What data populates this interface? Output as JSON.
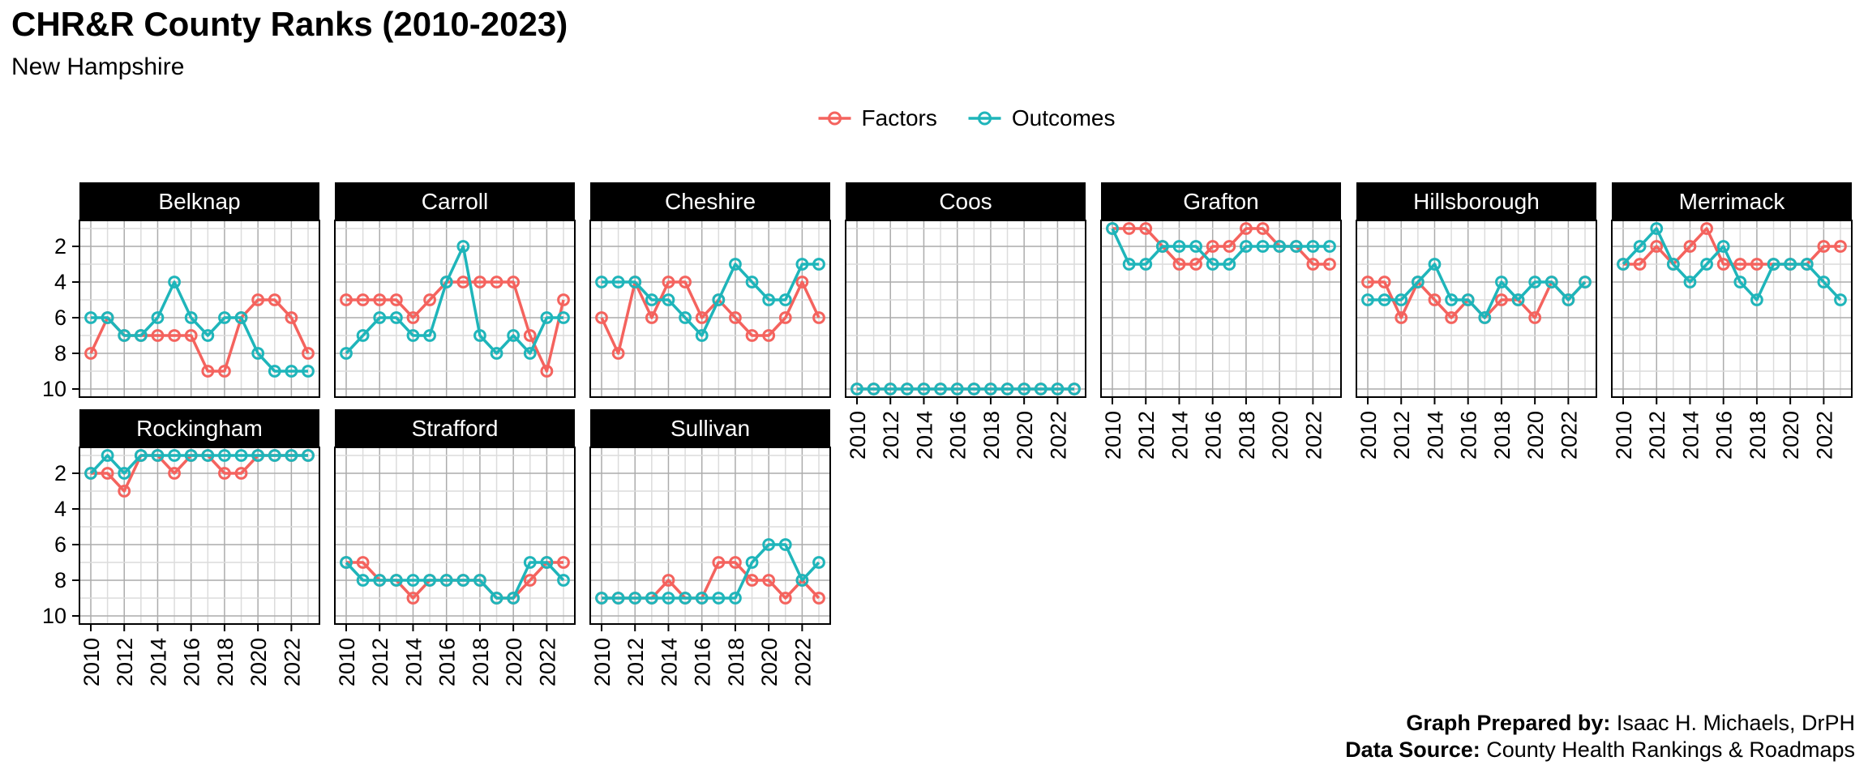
{
  "title": "CHR&R County Ranks (2010-2023)",
  "subtitle": "New Hampshire",
  "legend": {
    "items": [
      {
        "label": "Factors",
        "color": "#F4635E"
      },
      {
        "label": "Outcomes",
        "color": "#1FB5BA"
      }
    ]
  },
  "footer": {
    "prepared_label": "Graph Prepared by:",
    "prepared_value": " Isaac H. Michaels, DrPH",
    "source_label": "Data Source:",
    "source_value": " County Health Rankings & Roadmaps"
  },
  "chart_data": {
    "type": "line",
    "title": "CHR&R County Ranks (2010-2023)",
    "subtitle": "New Hampshire",
    "years": [
      2010,
      2011,
      2012,
      2013,
      2014,
      2015,
      2016,
      2017,
      2018,
      2019,
      2020,
      2021,
      2022,
      2023
    ],
    "x_ticks": [
      2010,
      2012,
      2014,
      2016,
      2018,
      2020,
      2022
    ],
    "y_ticks": [
      2,
      4,
      6,
      8,
      10
    ],
    "ylim": [
      1,
      10
    ],
    "y_reversed": true,
    "grid": true,
    "legend_position": "top-center",
    "series_names": [
      "Factors",
      "Outcomes"
    ],
    "colors": {
      "factors": "#F4635E",
      "outcomes": "#1FB5BA"
    },
    "marker": "open-circle",
    "facets": [
      {
        "name": "Belknap",
        "row": 0,
        "col": 0,
        "show_y_axis": true,
        "show_x_labels": false,
        "factors": [
          8,
          6,
          7,
          7,
          7,
          7,
          7,
          9,
          9,
          6,
          5,
          5,
          6,
          8
        ],
        "outcomes": [
          6,
          6,
          7,
          7,
          6,
          4,
          6,
          7,
          6,
          6,
          8,
          9,
          9,
          9
        ]
      },
      {
        "name": "Carroll",
        "row": 0,
        "col": 1,
        "show_y_axis": false,
        "show_x_labels": false,
        "factors": [
          5,
          5,
          5,
          5,
          6,
          5,
          4,
          4,
          4,
          4,
          4,
          7,
          9,
          5
        ],
        "outcomes": [
          8,
          7,
          6,
          6,
          7,
          7,
          4,
          2,
          7,
          8,
          7,
          8,
          6,
          6
        ]
      },
      {
        "name": "Cheshire",
        "row": 0,
        "col": 2,
        "show_y_axis": false,
        "show_x_labels": false,
        "factors": [
          6,
          8,
          4,
          6,
          4,
          4,
          6,
          5,
          6,
          7,
          7,
          6,
          4,
          6
        ],
        "outcomes": [
          4,
          4,
          4,
          5,
          5,
          6,
          7,
          5,
          3,
          4,
          5,
          5,
          3,
          3
        ]
      },
      {
        "name": "Coos",
        "row": 0,
        "col": 3,
        "show_y_axis": false,
        "show_x_labels": true,
        "factors": [
          10,
          10,
          10,
          10,
          10,
          10,
          10,
          10,
          10,
          10,
          10,
          10,
          10,
          10
        ],
        "outcomes": [
          10,
          10,
          10,
          10,
          10,
          10,
          10,
          10,
          10,
          10,
          10,
          10,
          10,
          10
        ]
      },
      {
        "name": "Grafton",
        "row": 0,
        "col": 4,
        "show_y_axis": false,
        "show_x_labels": true,
        "factors": [
          1,
          1,
          1,
          2,
          3,
          3,
          2,
          2,
          1,
          1,
          2,
          2,
          3,
          3
        ],
        "outcomes": [
          1,
          3,
          3,
          2,
          2,
          2,
          3,
          3,
          2,
          2,
          2,
          2,
          2,
          2
        ]
      },
      {
        "name": "Hillsborough",
        "row": 0,
        "col": 5,
        "show_y_axis": false,
        "show_x_labels": true,
        "factors": [
          4,
          4,
          6,
          4,
          5,
          6,
          5,
          6,
          5,
          5,
          6,
          4,
          5,
          4
        ],
        "outcomes": [
          5,
          5,
          5,
          4,
          3,
          5,
          5,
          6,
          4,
          5,
          4,
          4,
          5,
          4
        ]
      },
      {
        "name": "Merrimack",
        "row": 0,
        "col": 6,
        "show_y_axis": false,
        "show_x_labels": true,
        "factors": [
          3,
          3,
          2,
          3,
          2,
          1,
          3,
          3,
          3,
          3,
          3,
          3,
          2,
          2
        ],
        "outcomes": [
          3,
          2,
          1,
          3,
          4,
          3,
          2,
          4,
          5,
          3,
          3,
          3,
          4,
          5
        ]
      },
      {
        "name": "Rockingham",
        "row": 1,
        "col": 0,
        "show_y_axis": true,
        "show_x_labels": true,
        "factors": [
          2,
          2,
          3,
          1,
          1,
          2,
          1,
          1,
          2,
          2,
          1,
          1,
          1,
          1
        ],
        "outcomes": [
          2,
          1,
          2,
          1,
          1,
          1,
          1,
          1,
          1,
          1,
          1,
          1,
          1,
          1
        ]
      },
      {
        "name": "Strafford",
        "row": 1,
        "col": 1,
        "show_y_axis": false,
        "show_x_labels": true,
        "factors": [
          7,
          7,
          8,
          8,
          9,
          8,
          8,
          8,
          8,
          9,
          9,
          8,
          7,
          7
        ],
        "outcomes": [
          7,
          8,
          8,
          8,
          8,
          8,
          8,
          8,
          8,
          9,
          9,
          7,
          7,
          8
        ]
      },
      {
        "name": "Sullivan",
        "row": 1,
        "col": 2,
        "show_y_axis": false,
        "show_x_labels": true,
        "factors": [
          9,
          9,
          9,
          9,
          8,
          9,
          9,
          7,
          7,
          8,
          8,
          9,
          8,
          9
        ],
        "outcomes": [
          9,
          9,
          9,
          9,
          9,
          9,
          9,
          9,
          9,
          7,
          6,
          6,
          8,
          7
        ]
      }
    ]
  }
}
